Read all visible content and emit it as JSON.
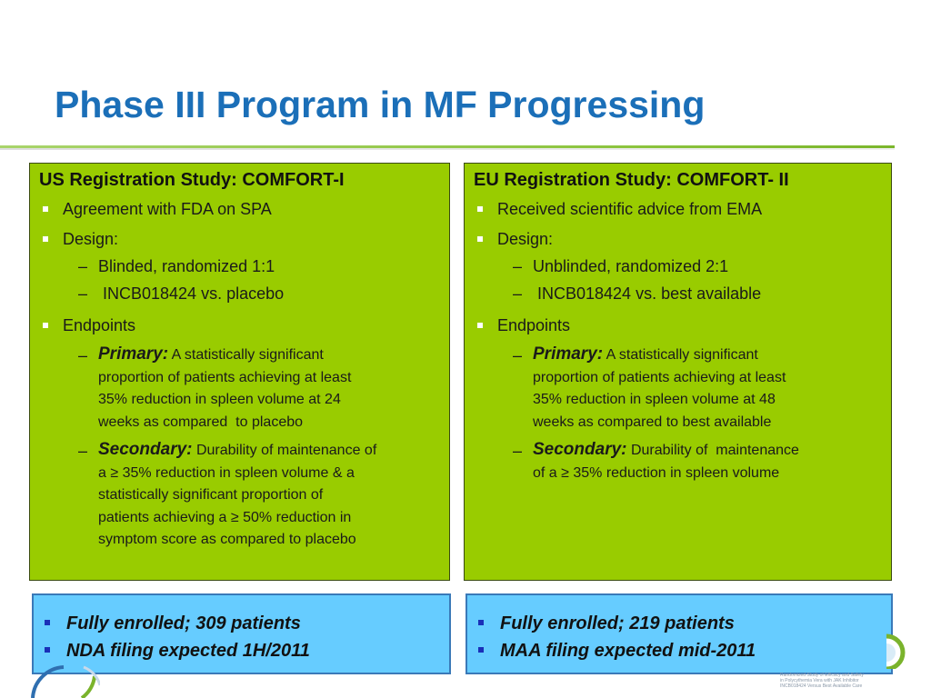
{
  "slide": {
    "title": "Phase III Program in MF Progressing"
  },
  "us_study": {
    "heading": "US Registration Study: COMFORT-I",
    "bullet1": "Agreement with FDA on SPA",
    "bullet2": "Design:",
    "design_items": [
      "Blinded, randomized 1:1",
      " INCB018424 vs. placebo"
    ],
    "bullet3": "Endpoints",
    "primary": {
      "label": "Primary:",
      "lines": [
        "A statistically significant",
        "proportion of patients achieving at least",
        "35% reduction in spleen volume at 24",
        "weeks as compared  to placebo"
      ]
    },
    "secondary": {
      "label": "Secondary:",
      "lines": [
        "Durability of maintenance of",
        "a ≥ 35% reduction in spleen volume & a",
        "statistically significant proportion of",
        "patients achieving a ≥ 50% reduction in",
        "symptom score as compared to placebo"
      ]
    }
  },
  "eu_study": {
    "heading": "EU Registration Study: COMFORT- II",
    "bullet1": "Received scientific advice from EMA",
    "bullet2": "Design:",
    "design_items": [
      "Unblinded, randomized 2:1",
      " INCB018424 vs. best available"
    ],
    "bullet3": "Endpoints",
    "primary": {
      "label": "Primary:",
      "lines": [
        "A statistically significant",
        "proportion of patients achieving at least",
        "35% reduction in spleen volume at 48",
        "weeks as compared to best available"
      ]
    },
    "secondary": {
      "label": "Secondary:",
      "lines": [
        "Durability of  maintenance",
        "of a ≥ 35% reduction in spleen volume"
      ]
    }
  },
  "us_enrollment": {
    "items": [
      "Fully enrolled; 309 patients",
      "NDA filing expected 1H/2011"
    ]
  },
  "eu_enrollment": {
    "items": [
      "Fully enrolled; 219 patients",
      "MAA filing expected mid-2011"
    ]
  },
  "fineprint": {
    "lines": [
      "Randomized Study of Efficacy and Safety",
      "in Polycythemia Vera with JAK Inhibitor",
      "INCB018424 Versus Best Available Care"
    ]
  },
  "colors": {
    "title": "#1b6fb8",
    "study_box": "#99cc00",
    "enroll_box": "#66ccff",
    "title_rule": "#8cc43e",
    "enroll_bullet": "#1a2fb8"
  },
  "icons": [
    "square-bullet-icon",
    "corner-logo-left",
    "corner-logo-right"
  ]
}
